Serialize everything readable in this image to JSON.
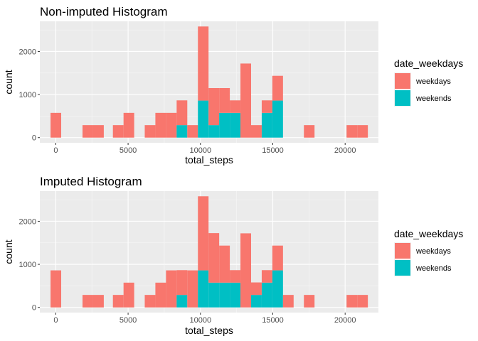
{
  "legend": {
    "title": "date_weekdays",
    "items": [
      {
        "label": "weekdays",
        "color": "#F8766D"
      },
      {
        "label": "weekends",
        "color": "#00BFC4"
      }
    ]
  },
  "chart_data": [
    {
      "type": "bar",
      "stacked": true,
      "title": "Non-imputed Histogram",
      "xlabel": "total_steps",
      "ylabel": "count",
      "xlim": [
        -1100,
        22300
      ],
      "ylim": [
        -120,
        2700
      ],
      "xticks": [
        0,
        5000,
        10000,
        15000,
        20000
      ],
      "yticks": [
        0,
        1000,
        2000
      ],
      "grid": true,
      "legend_position": "right",
      "bins": [
        {
          "x0": -360,
          "x1": 375,
          "weekends": 0,
          "weekdays": 575
        },
        {
          "x0": 1850,
          "x1": 2585,
          "weekends": 0,
          "weekdays": 290
        },
        {
          "x0": 2585,
          "x1": 3320,
          "weekends": 0,
          "weekdays": 290
        },
        {
          "x0": 3950,
          "x1": 4685,
          "weekends": 0,
          "weekdays": 290
        },
        {
          "x0": 4685,
          "x1": 5420,
          "weekends": 0,
          "weekdays": 575
        },
        {
          "x0": 6150,
          "x1": 6885,
          "weekends": 0,
          "weekdays": 290
        },
        {
          "x0": 6885,
          "x1": 7620,
          "weekends": 0,
          "weekdays": 575
        },
        {
          "x0": 7620,
          "x1": 8355,
          "weekends": 0,
          "weekdays": 575
        },
        {
          "x0": 8355,
          "x1": 9090,
          "weekends": 290,
          "weekdays": 575
        },
        {
          "x0": 9090,
          "x1": 9825,
          "weekends": 0,
          "weekdays": 290
        },
        {
          "x0": 9825,
          "x1": 10560,
          "weekends": 860,
          "weekdays": 1720
        },
        {
          "x0": 10560,
          "x1": 11295,
          "weekends": 290,
          "weekdays": 860
        },
        {
          "x0": 11295,
          "x1": 12030,
          "weekends": 575,
          "weekdays": 575
        },
        {
          "x0": 12030,
          "x1": 12765,
          "weekends": 575,
          "weekdays": 290
        },
        {
          "x0": 12765,
          "x1": 13500,
          "weekends": 0,
          "weekdays": 1720
        },
        {
          "x0": 13500,
          "x1": 14235,
          "weekends": 0,
          "weekdays": 290
        },
        {
          "x0": 14235,
          "x1": 14970,
          "weekends": 575,
          "weekdays": 290
        },
        {
          "x0": 14970,
          "x1": 15705,
          "weekends": 860,
          "weekdays": 575
        },
        {
          "x0": 17150,
          "x1": 17885,
          "weekends": 0,
          "weekdays": 290
        },
        {
          "x0": 20100,
          "x1": 20835,
          "weekends": 0,
          "weekdays": 290
        },
        {
          "x0": 20835,
          "x1": 21570,
          "weekends": 0,
          "weekdays": 290
        }
      ]
    },
    {
      "type": "bar",
      "stacked": true,
      "title": "Imputed Histogram",
      "xlabel": "total_steps",
      "ylabel": "count",
      "xlim": [
        -1100,
        22300
      ],
      "ylim": [
        -120,
        2700
      ],
      "xticks": [
        0,
        5000,
        10000,
        15000,
        20000
      ],
      "yticks": [
        0,
        1000,
        2000
      ],
      "grid": true,
      "legend_position": "right",
      "bins": [
        {
          "x0": -360,
          "x1": 375,
          "weekends": 0,
          "weekdays": 860
        },
        {
          "x0": 1850,
          "x1": 2585,
          "weekends": 0,
          "weekdays": 290
        },
        {
          "x0": 2585,
          "x1": 3320,
          "weekends": 0,
          "weekdays": 290
        },
        {
          "x0": 3950,
          "x1": 4685,
          "weekends": 0,
          "weekdays": 290
        },
        {
          "x0": 4685,
          "x1": 5420,
          "weekends": 0,
          "weekdays": 575
        },
        {
          "x0": 6150,
          "x1": 6885,
          "weekends": 0,
          "weekdays": 290
        },
        {
          "x0": 6885,
          "x1": 7620,
          "weekends": 0,
          "weekdays": 575
        },
        {
          "x0": 7620,
          "x1": 8355,
          "weekends": 0,
          "weekdays": 860
        },
        {
          "x0": 8355,
          "x1": 9090,
          "weekends": 290,
          "weekdays": 575
        },
        {
          "x0": 9090,
          "x1": 9825,
          "weekends": 0,
          "weekdays": 860
        },
        {
          "x0": 9825,
          "x1": 10560,
          "weekends": 860,
          "weekdays": 1720
        },
        {
          "x0": 10560,
          "x1": 11295,
          "weekends": 575,
          "weekdays": 1150
        },
        {
          "x0": 11295,
          "x1": 12030,
          "weekends": 575,
          "weekdays": 860
        },
        {
          "x0": 12030,
          "x1": 12765,
          "weekends": 575,
          "weekdays": 290
        },
        {
          "x0": 12765,
          "x1": 13500,
          "weekends": 0,
          "weekdays": 1720
        },
        {
          "x0": 13500,
          "x1": 14235,
          "weekends": 290,
          "weekdays": 290
        },
        {
          "x0": 14235,
          "x1": 14970,
          "weekends": 575,
          "weekdays": 290
        },
        {
          "x0": 14970,
          "x1": 15705,
          "weekends": 860,
          "weekdays": 575
        },
        {
          "x0": 15705,
          "x1": 16440,
          "weekends": 0,
          "weekdays": 290
        },
        {
          "x0": 17150,
          "x1": 17885,
          "weekends": 0,
          "weekdays": 290
        },
        {
          "x0": 20100,
          "x1": 20835,
          "weekends": 0,
          "weekdays": 290
        },
        {
          "x0": 20835,
          "x1": 21570,
          "weekends": 0,
          "weekdays": 290
        }
      ]
    }
  ]
}
